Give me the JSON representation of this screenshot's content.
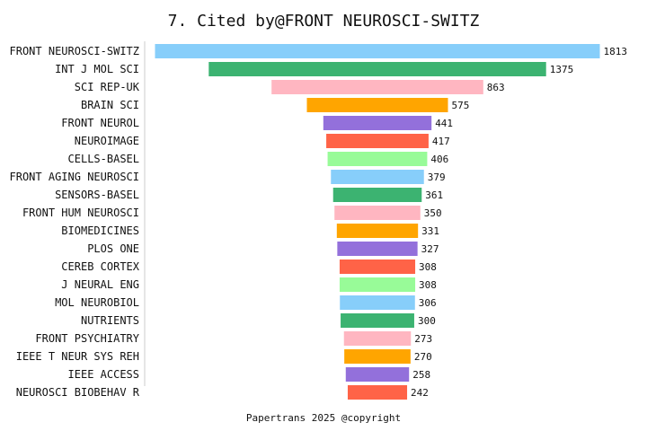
{
  "chart_data": {
    "type": "bar",
    "orientation": "horizontal",
    "style": "funnel-centered",
    "title": "7. Cited by@FRONT NEUROSCI-SWITZ",
    "footer": "Papertrans 2025 @copyright",
    "categories": [
      "FRONT NEUROSCI-SWITZ",
      "INT J MOL SCI",
      "SCI REP-UK",
      "BRAIN SCI",
      "FRONT NEUROL",
      "NEUROIMAGE",
      "CELLS-BASEL",
      "FRONT AGING NEUROSCI",
      "SENSORS-BASEL",
      "FRONT HUM NEUROSCI",
      "BIOMEDICINES",
      "PLOS ONE",
      "CEREB CORTEX",
      "J NEURAL ENG",
      "MOL NEUROBIOL",
      "NUTRIENTS",
      "FRONT PSYCHIATRY",
      "IEEE T NEUR SYS REH",
      "IEEE ACCESS",
      "NEUROSCI BIOBEHAV R"
    ],
    "values": [
      1813,
      1375,
      863,
      575,
      441,
      417,
      406,
      379,
      361,
      350,
      331,
      327,
      308,
      308,
      306,
      300,
      273,
      270,
      258,
      242
    ],
    "colors": [
      "#87CEFA",
      "#3CB371",
      "#FFB6C1",
      "#FFA500",
      "#9370DB",
      "#FF6347",
      "#98FB98"
    ],
    "grid": false,
    "legend": "none"
  }
}
